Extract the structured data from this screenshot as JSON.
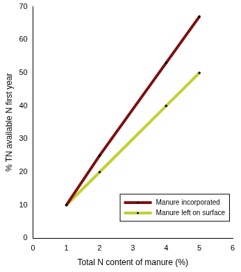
{
  "chart_data": {
    "type": "line",
    "x_label": "Total N content of manure (%)",
    "y_label": "% TN available N first year",
    "x": [
      1,
      2,
      4,
      5
    ],
    "series": [
      {
        "name": "Manure incorporated",
        "color": "#7f0f0f",
        "values": [
          10,
          25,
          53,
          67
        ],
        "marker": "circle"
      },
      {
        "name": "Manure left on surface",
        "color": "#bfd12e",
        "values": [
          10,
          20,
          40,
          50
        ],
        "marker": "circle"
      }
    ],
    "xlim": [
      0,
      6
    ],
    "xticks": [
      0,
      1,
      2,
      3,
      4,
      5,
      6
    ],
    "ylim": [
      0,
      70
    ],
    "yticks": [
      0,
      10,
      20,
      30,
      40,
      50,
      60,
      70
    ],
    "grid": false,
    "legend": "lower right"
  }
}
